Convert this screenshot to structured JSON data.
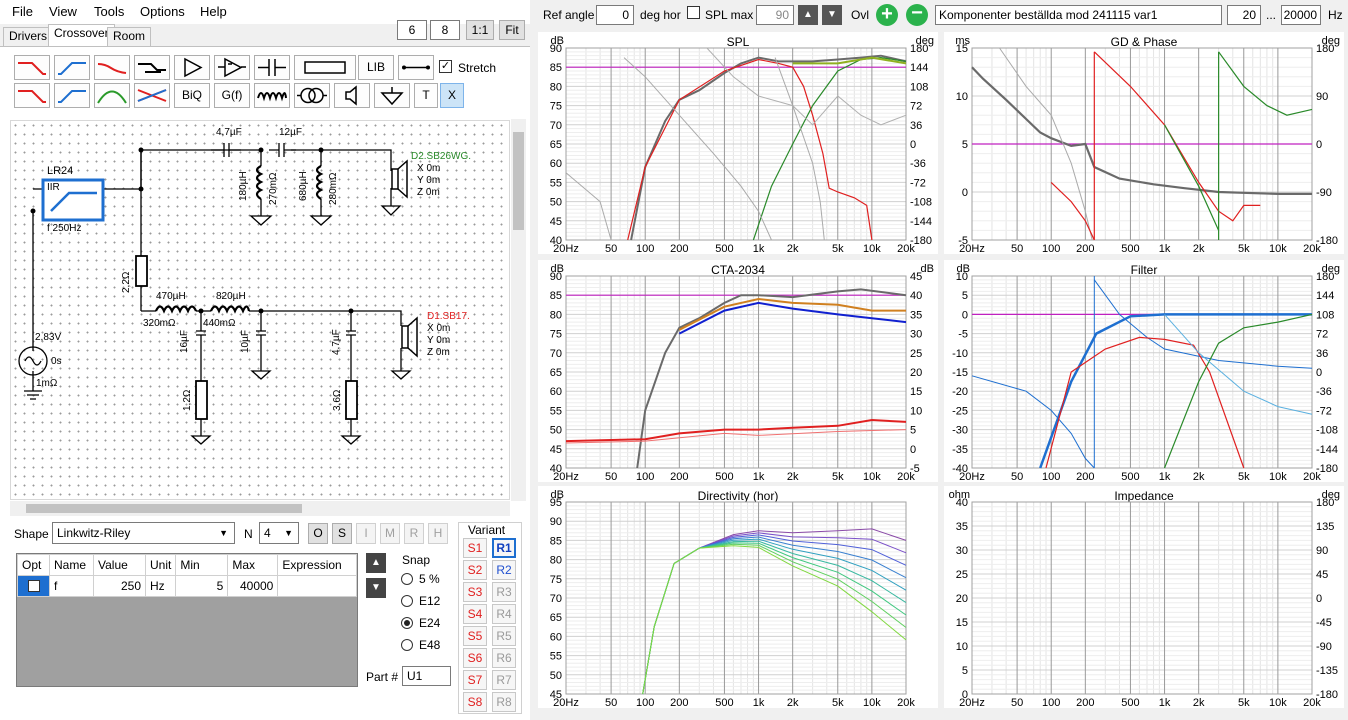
{
  "menu": {
    "file": "File",
    "view": "View",
    "tools": "Tools",
    "options": "Options",
    "help": "Help"
  },
  "toolbar": {
    "v6": "6",
    "v8": "8",
    "ratio": "1:1",
    "fit": "Fit",
    "ref_angle_label": "Ref angle",
    "ref_angle": "0",
    "deg_hor": "deg hor",
    "spl_max_label": "SPL max",
    "spl_max": "90",
    "ovl": "Ovl",
    "project": "Komponenter beställda mod 241115 var1",
    "f_from": "20",
    "dots": "...",
    "f_to": "20000",
    "hz": "Hz"
  },
  "tabs": {
    "drivers": "Drivers",
    "crossover": "Crossover",
    "room": "Room"
  },
  "palette": {
    "lib": "LIB",
    "biq": "BiQ",
    "gf": "G(f)",
    "t": "T",
    "x": "X",
    "stretch": "Stretch"
  },
  "schematic": {
    "filter_name": "LR24",
    "filter_type": "IIR",
    "filter_freq": "f  250Hz",
    "c1": "4,7µF",
    "c2": "12µF",
    "l1": "180µH",
    "l1r": "270mΩ",
    "l2": "680µH",
    "l2r": "280mΩ",
    "tw_name": "D2.SB26WG.",
    "tw_x": "X 0m",
    "tw_y": "Y 0m",
    "tw_z": "Z 0m",
    "r1": "2,2Ω",
    "l3": "470µH",
    "l3r": "320mΩ",
    "l4": "820µH",
    "l4r": "440mΩ",
    "c3": "16µF",
    "r2": "1,2Ω",
    "c4": "10µF",
    "c5": "4,7µF",
    "r3": "3,6Ω",
    "wf_name": "D1.SB17.",
    "wf_x": "X 0m",
    "wf_y": "Y 0m",
    "wf_z": "Z 0m",
    "src_v": "2,83V",
    "src_t": "0s",
    "src_r": "1mΩ"
  },
  "shape": {
    "label": "Shape",
    "value": "Linkwitz-Riley",
    "n_label": "N",
    "n_value": "4",
    "btns": [
      "O",
      "S",
      "I",
      "M",
      "R",
      "H"
    ]
  },
  "param_table": {
    "headers": [
      "Opt",
      "Name",
      "Value",
      "Unit",
      "Min",
      "Max",
      "Expression"
    ],
    "rows": [
      [
        "",
        "f",
        "250",
        "Hz",
        "5",
        "40000",
        ""
      ]
    ]
  },
  "snap": {
    "label": "Snap",
    "options": [
      "5 %",
      "E12",
      "E24",
      "E48"
    ],
    "selected": "E24"
  },
  "part": {
    "label": "Part #",
    "value": "U1"
  },
  "variant": {
    "label": "Variant",
    "s": [
      "S1",
      "S2",
      "S3",
      "S4",
      "S5",
      "S6",
      "S7",
      "S8"
    ],
    "r": [
      "R1",
      "R2",
      "R3",
      "R4",
      "R5",
      "R6",
      "R7",
      "R8"
    ]
  },
  "x_ticks": [
    "20Hz",
    "50",
    "100",
    "200",
    "500",
    "1k",
    "2k",
    "5k",
    "10k",
    "20k"
  ],
  "panels": {
    "spl": {
      "title": "SPL",
      "yl": "dB",
      "yr": "deg",
      "left": [
        "90",
        "85",
        "80",
        "75",
        "70",
        "65",
        "60",
        "55",
        "50",
        "45",
        "40"
      ],
      "right": [
        "180",
        "144",
        "108",
        "72",
        "36",
        "0",
        "-36",
        "-72",
        "-108",
        "-144",
        "-180"
      ]
    },
    "gd": {
      "title": "GD & Phase",
      "yl": "ms",
      "yr": "deg",
      "left": [
        "15",
        "10",
        "5",
        "0",
        "-5"
      ],
      "right": [
        "180",
        "90",
        "0",
        "-90",
        "-180"
      ]
    },
    "cta": {
      "title": "CTA-2034",
      "yl": "dB",
      "yr": "dB",
      "left": [
        "90",
        "85",
        "80",
        "75",
        "70",
        "65",
        "60",
        "55",
        "50",
        "45",
        "40"
      ],
      "right": [
        "45",
        "40",
        "35",
        "30",
        "25",
        "20",
        "15",
        "10",
        "5",
        "0",
        "-5"
      ]
    },
    "filter": {
      "title": "Filter",
      "yl": "dB",
      "yr": "deg",
      "left": [
        "10",
        "5",
        "0",
        "-5",
        "-10",
        "-15",
        "-20",
        "-25",
        "-30",
        "-35",
        "-40"
      ],
      "right": [
        "180",
        "144",
        "108",
        "72",
        "36",
        "0",
        "-36",
        "-72",
        "-108",
        "-144",
        "-180"
      ]
    },
    "dir": {
      "title": "Directivity (hor)",
      "yl": "dB",
      "yr": "",
      "left": [
        "95",
        "90",
        "85",
        "80",
        "75",
        "70",
        "65",
        "60",
        "55",
        "50",
        "45"
      ],
      "right": []
    },
    "imp": {
      "title": "Impedance",
      "yl": "ohm",
      "yr": "deg",
      "left": [
        "40",
        "35",
        "30",
        "25",
        "20",
        "15",
        "10",
        "5",
        "0"
      ],
      "right": [
        "180",
        "135",
        "90",
        "45",
        "0",
        "-45",
        "-90",
        "-135",
        "-180"
      ]
    }
  },
  "colors": {
    "accent": "#1e6fd0",
    "grey": "#6a6a6a",
    "green": "#2a8a2a",
    "red": "#e02020",
    "magenta": "#c020c0",
    "orange": "#d08020"
  }
}
